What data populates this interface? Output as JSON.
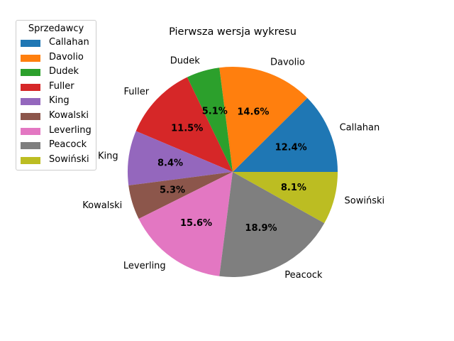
{
  "chart_data": {
    "type": "pie",
    "title": "Pierwsza wersja wykresu",
    "legend_title": "Sprzedawcy",
    "legend_position": "upper-left",
    "start_angle_deg": 0,
    "direction": "counterclockwise",
    "slices": [
      {
        "label": "Callahan",
        "value": 12.4,
        "pct_label": "12.4%",
        "color": "#1f77b4"
      },
      {
        "label": "Davolio",
        "value": 14.6,
        "pct_label": "14.6%",
        "color": "#ff7f0e"
      },
      {
        "label": "Dudek",
        "value": 5.1,
        "pct_label": "5.1%",
        "color": "#2ca02c"
      },
      {
        "label": "Fuller",
        "value": 11.5,
        "pct_label": "11.5%",
        "color": "#d62728"
      },
      {
        "label": "King",
        "value": 8.4,
        "pct_label": "8.4%",
        "color": "#9467bd"
      },
      {
        "label": "Kowalski",
        "value": 5.3,
        "pct_label": "5.3%",
        "color": "#8c564b"
      },
      {
        "label": "Leverling",
        "value": 15.6,
        "pct_label": "15.6%",
        "color": "#e377c2"
      },
      {
        "label": "Peacock",
        "value": 18.9,
        "pct_label": "18.9%",
        "color": "#7f7f7f"
      },
      {
        "label": "Sowiński",
        "value": 8.1,
        "pct_label": "8.1%",
        "color": "#bcbd22"
      }
    ]
  }
}
